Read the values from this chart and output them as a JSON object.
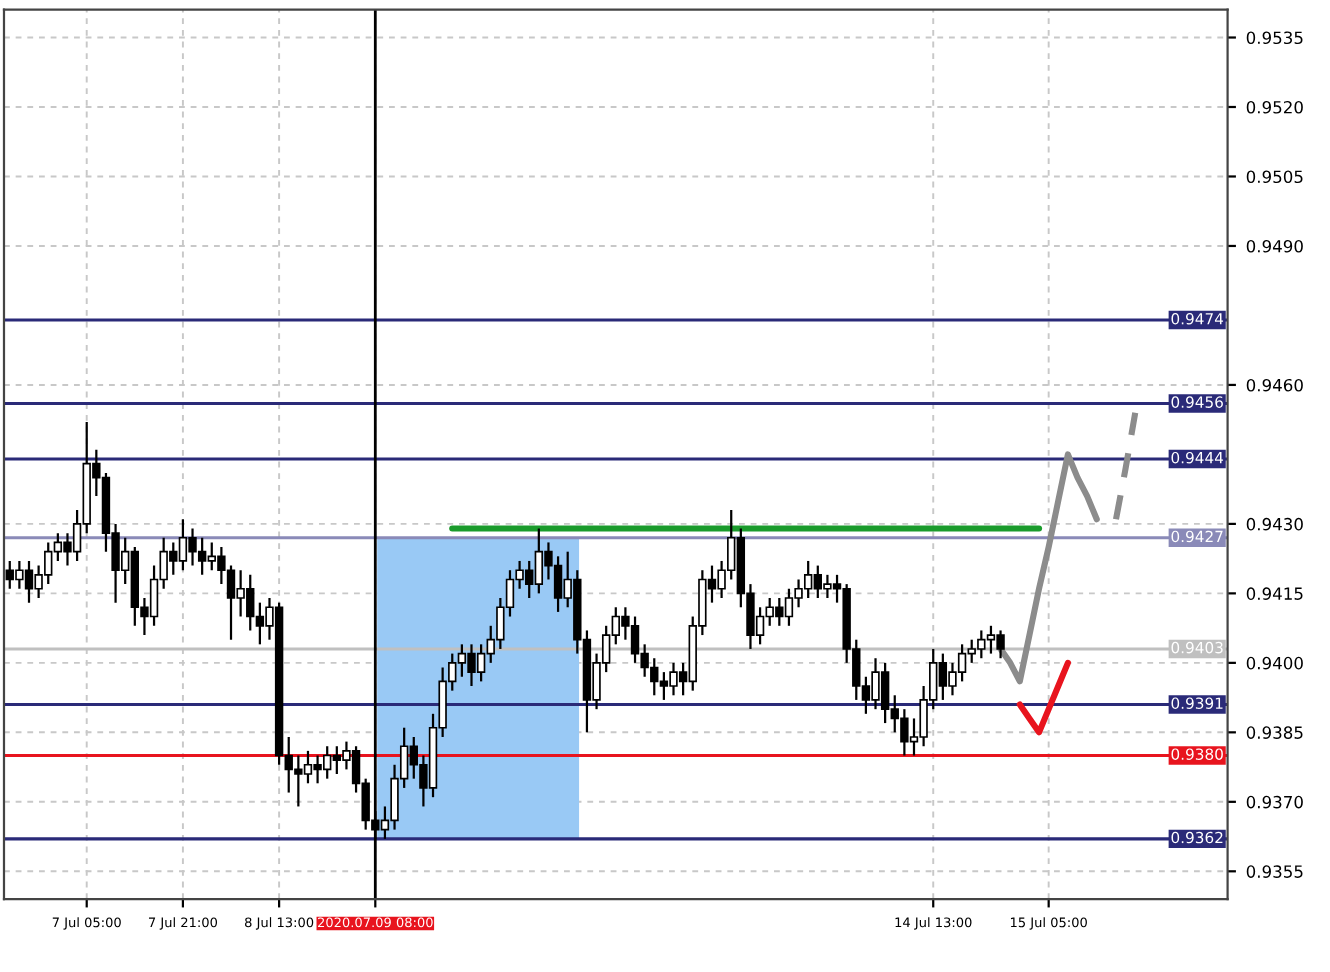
{
  "chart_data": {
    "type": "candlestick",
    "categories": [
      null,
      null,
      null,
      null,
      null,
      null,
      null,
      null,
      "7 Jul 05:00",
      null,
      null,
      null,
      null,
      null,
      null,
      null,
      null,
      null,
      "7 Jul 21:00",
      null,
      null,
      null,
      null,
      null,
      null,
      null,
      null,
      null,
      "8 Jul 13:00",
      null,
      null,
      null,
      null,
      null,
      null,
      null,
      null,
      null,
      "2020.07.09 08:00",
      null,
      null,
      null,
      null,
      null,
      null,
      null,
      null,
      null,
      null,
      null,
      null,
      null,
      null,
      null,
      null,
      null,
      null,
      null,
      null,
      null,
      null,
      null,
      null,
      null,
      null,
      null,
      null,
      null,
      null,
      null,
      null,
      null,
      null,
      null,
      null,
      null,
      null,
      null,
      null,
      null,
      null,
      null,
      null,
      null,
      null,
      null,
      null,
      null,
      null,
      null,
      null,
      null,
      null,
      null,
      null,
      null,
      "14 Jul 13:00",
      null,
      null,
      null,
      null,
      null,
      null,
      null,
      null,
      null,
      null,
      null,
      "15 Jul 05:00",
      null,
      null,
      null,
      null,
      null,
      null,
      null,
      null,
      null,
      null,
      null,
      null,
      null,
      null,
      null,
      null,
      null,
      null
    ],
    "ohlc": [
      [
        0.942,
        0.9422,
        0.9416,
        0.9418
      ],
      [
        0.9418,
        0.9422,
        0.9416,
        0.942
      ],
      [
        0.942,
        0.9422,
        0.9413,
        0.9416
      ],
      [
        0.9416,
        0.9421,
        0.9414,
        0.9419
      ],
      [
        0.9419,
        0.9426,
        0.9417,
        0.9424
      ],
      [
        0.9424,
        0.9428,
        0.9422,
        0.9426
      ],
      [
        0.9426,
        0.9428,
        0.9421,
        0.9424
      ],
      [
        0.9424,
        0.9433,
        0.9422,
        0.943
      ],
      [
        0.943,
        0.9452,
        0.9428,
        0.9443
      ],
      [
        0.9443,
        0.9446,
        0.9436,
        0.944
      ],
      [
        0.944,
        0.9441,
        0.9424,
        0.9428
      ],
      [
        0.9428,
        0.943,
        0.9413,
        0.942
      ],
      [
        0.942,
        0.9427,
        0.9417,
        0.9424
      ],
      [
        0.9424,
        0.9425,
        0.9408,
        0.9412
      ],
      [
        0.9412,
        0.9414,
        0.9406,
        0.941
      ],
      [
        0.941,
        0.9421,
        0.9408,
        0.9418
      ],
      [
        0.9418,
        0.9427,
        0.9416,
        0.9424
      ],
      [
        0.9424,
        0.9426,
        0.9419,
        0.9422
      ],
      [
        0.9422,
        0.9431,
        0.942,
        0.9427
      ],
      [
        0.9427,
        0.9429,
        0.9421,
        0.9424
      ],
      [
        0.9424,
        0.9427,
        0.9419,
        0.9422
      ],
      [
        0.9422,
        0.9426,
        0.942,
        0.9423
      ],
      [
        0.9423,
        0.9425,
        0.9417,
        0.942
      ],
      [
        0.942,
        0.9421,
        0.9405,
        0.9414
      ],
      [
        0.9414,
        0.942,
        0.941,
        0.9416
      ],
      [
        0.9416,
        0.9419,
        0.9407,
        0.941
      ],
      [
        0.941,
        0.9413,
        0.9404,
        0.9408
      ],
      [
        0.9408,
        0.9414,
        0.9405,
        0.9412
      ],
      [
        0.9412,
        0.9413,
        0.9378,
        0.938
      ],
      [
        0.938,
        0.9384,
        0.9372,
        0.9377
      ],
      [
        0.9377,
        0.938,
        0.9369,
        0.9376
      ],
      [
        0.9376,
        0.9381,
        0.9374,
        0.9378
      ],
      [
        0.9378,
        0.938,
        0.9374,
        0.9377
      ],
      [
        0.9377,
        0.9382,
        0.9375,
        0.938
      ],
      [
        0.938,
        0.9382,
        0.9376,
        0.9379
      ],
      [
        0.9379,
        0.9383,
        0.9377,
        0.9381
      ],
      [
        0.9381,
        0.9382,
        0.9372,
        0.9374
      ],
      [
        0.9374,
        0.9375,
        0.9364,
        0.9366
      ],
      [
        0.9366,
        0.9368,
        0.9362,
        0.9364
      ],
      [
        0.9364,
        0.9369,
        0.9362,
        0.9366
      ],
      [
        0.9366,
        0.9378,
        0.9364,
        0.9375
      ],
      [
        0.9375,
        0.9386,
        0.9373,
        0.9382
      ],
      [
        0.9382,
        0.9384,
        0.9375,
        0.9378
      ],
      [
        0.9378,
        0.938,
        0.9369,
        0.9373
      ],
      [
        0.9373,
        0.9389,
        0.9371,
        0.9386
      ],
      [
        0.9386,
        0.9399,
        0.9384,
        0.9396
      ],
      [
        0.9396,
        0.9402,
        0.9394,
        0.94
      ],
      [
        0.94,
        0.9404,
        0.9397,
        0.9402
      ],
      [
        0.9402,
        0.9404,
        0.9395,
        0.9398
      ],
      [
        0.9398,
        0.9404,
        0.9396,
        0.9402
      ],
      [
        0.9402,
        0.9408,
        0.94,
        0.9405
      ],
      [
        0.9405,
        0.9414,
        0.9403,
        0.9412
      ],
      [
        0.9412,
        0.942,
        0.941,
        0.9418
      ],
      [
        0.9418,
        0.9422,
        0.9416,
        0.942
      ],
      [
        0.942,
        0.9422,
        0.9414,
        0.9417
      ],
      [
        0.9417,
        0.9429,
        0.9415,
        0.9424
      ],
      [
        0.9424,
        0.9426,
        0.9418,
        0.9421
      ],
      [
        0.9421,
        0.9423,
        0.9411,
        0.9414
      ],
      [
        0.9414,
        0.9424,
        0.9412,
        0.9418
      ],
      [
        0.9418,
        0.942,
        0.9402,
        0.9405
      ],
      [
        0.9405,
        0.9407,
        0.9385,
        0.9392
      ],
      [
        0.9392,
        0.9402,
        0.939,
        0.94
      ],
      [
        0.94,
        0.9408,
        0.9398,
        0.9406
      ],
      [
        0.9406,
        0.9412,
        0.9404,
        0.941
      ],
      [
        0.941,
        0.9412,
        0.9405,
        0.9408
      ],
      [
        0.9408,
        0.941,
        0.94,
        0.9402
      ],
      [
        0.9402,
        0.9404,
        0.9397,
        0.9399
      ],
      [
        0.9399,
        0.9401,
        0.9393,
        0.9396
      ],
      [
        0.9396,
        0.9398,
        0.9392,
        0.9395
      ],
      [
        0.9395,
        0.94,
        0.9393,
        0.9398
      ],
      [
        0.9398,
        0.94,
        0.9393,
        0.9396
      ],
      [
        0.9396,
        0.941,
        0.9394,
        0.9408
      ],
      [
        0.9408,
        0.942,
        0.9406,
        0.9418
      ],
      [
        0.9418,
        0.9421,
        0.9413,
        0.9416
      ],
      [
        0.9416,
        0.9422,
        0.9414,
        0.942
      ],
      [
        0.942,
        0.9433,
        0.9418,
        0.9427
      ],
      [
        0.9427,
        0.9429,
        0.9412,
        0.9415
      ],
      [
        0.9415,
        0.9417,
        0.9403,
        0.9406
      ],
      [
        0.9406,
        0.9412,
        0.9404,
        0.941
      ],
      [
        0.941,
        0.9414,
        0.9408,
        0.9412
      ],
      [
        0.9412,
        0.9414,
        0.9408,
        0.941
      ],
      [
        0.941,
        0.9416,
        0.9408,
        0.9414
      ],
      [
        0.9414,
        0.9418,
        0.9412,
        0.9416
      ],
      [
        0.9416,
        0.9422,
        0.9414,
        0.9419
      ],
      [
        0.9419,
        0.9421,
        0.9414,
        0.9416
      ],
      [
        0.9416,
        0.9419,
        0.9414,
        0.9417
      ],
      [
        0.9417,
        0.9419,
        0.9413,
        0.9416
      ],
      [
        0.9416,
        0.9417,
        0.94,
        0.9403
      ],
      [
        0.9403,
        0.9405,
        0.9392,
        0.9395
      ],
      [
        0.9395,
        0.9397,
        0.9389,
        0.9392
      ],
      [
        0.9392,
        0.9401,
        0.939,
        0.9398
      ],
      [
        0.9398,
        0.94,
        0.9387,
        0.939
      ],
      [
        0.939,
        0.9393,
        0.9385,
        0.9388
      ],
      [
        0.9388,
        0.939,
        0.938,
        0.9383
      ],
      [
        0.9383,
        0.9388,
        0.938,
        0.9384
      ],
      [
        0.9384,
        0.9395,
        0.9382,
        0.9392
      ],
      [
        0.9392,
        0.9403,
        0.939,
        0.94
      ],
      [
        0.94,
        0.9402,
        0.9392,
        0.9395
      ],
      [
        0.9395,
        0.94,
        0.9393,
        0.9398
      ],
      [
        0.9398,
        0.9404,
        0.9396,
        0.9402
      ],
      [
        0.9402,
        0.9405,
        0.94,
        0.9403
      ],
      [
        0.9403,
        0.9407,
        0.9401,
        0.9405
      ],
      [
        0.9405,
        0.9408,
        0.9402,
        0.9406
      ],
      [
        0.9406,
        0.9407,
        0.9401,
        0.9403
      ],
      null,
      null,
      null,
      null,
      null,
      null,
      null,
      null,
      null,
      null,
      null,
      null,
      null,
      null,
      null,
      null,
      null,
      null,
      null,
      null,
      null,
      null,
      null
    ],
    "series": [
      {
        "type": "line",
        "color": "#1a9b2c",
        "line_style": "solid",
        "values": [
          null,
          null,
          null,
          null,
          null,
          null,
          null,
          null,
          null,
          null,
          null,
          null,
          null,
          null,
          null,
          null,
          null,
          null,
          null,
          null,
          null,
          null,
          null,
          null,
          null,
          null,
          null,
          null,
          null,
          null,
          null,
          null,
          null,
          null,
          null,
          null,
          null,
          null,
          null,
          null,
          null,
          null,
          null,
          null,
          null,
          null,
          0.9429,
          0.9429,
          0.9429,
          0.9429,
          0.9429,
          0.9429,
          0.9429,
          0.9429,
          0.9429,
          0.9429,
          0.9429,
          0.9429,
          0.9429,
          0.9429,
          0.9429,
          0.9429,
          0.9429,
          0.9429,
          0.9429,
          0.9429,
          0.9429,
          0.9429,
          0.9429,
          0.9429,
          0.9429,
          0.9429,
          0.9429,
          0.9429,
          0.9429,
          0.9429,
          0.9429,
          0.9429,
          0.9429,
          0.9429,
          0.9429,
          0.9429,
          0.9429,
          0.9429,
          0.9429,
          0.9429,
          0.9429,
          0.9429,
          0.9429,
          0.9429,
          0.9429,
          0.9429,
          0.9429,
          0.9429,
          0.9429,
          0.9429,
          0.9429,
          0.9429,
          0.9429,
          0.9429,
          0.9429,
          0.9429,
          0.9429,
          0.9429,
          0.9429,
          0.9429,
          0.9429,
          0.9429,
          null,
          null,
          null,
          null,
          null,
          null,
          null,
          null,
          null,
          null,
          null,
          null,
          null,
          null,
          null,
          null,
          null,
          null,
          null
        ]
      },
      {
        "type": "line",
        "color": "#8c8c8c",
        "line_style": "solid",
        "values": [
          null,
          null,
          null,
          null,
          null,
          null,
          null,
          null,
          null,
          null,
          null,
          null,
          null,
          null,
          null,
          null,
          null,
          null,
          null,
          null,
          null,
          null,
          null,
          null,
          null,
          null,
          null,
          null,
          null,
          null,
          null,
          null,
          null,
          null,
          null,
          null,
          null,
          null,
          null,
          null,
          null,
          null,
          null,
          null,
          null,
          null,
          null,
          null,
          null,
          null,
          null,
          null,
          null,
          null,
          null,
          null,
          null,
          null,
          null,
          null,
          null,
          null,
          null,
          null,
          null,
          null,
          null,
          null,
          null,
          null,
          null,
          null,
          null,
          null,
          null,
          null,
          null,
          null,
          null,
          null,
          null,
          null,
          null,
          null,
          null,
          null,
          null,
          null,
          null,
          null,
          null,
          null,
          null,
          null,
          null,
          null,
          null,
          null,
          null,
          null,
          null,
          null,
          null,
          0.9403,
          0.94,
          0.9396,
          0.9406,
          0.9416,
          0.9425,
          0.9435,
          0.9445,
          0.944,
          0.9436,
          0.9431,
          null,
          null,
          null,
          null,
          null,
          null,
          null,
          null,
          null,
          null,
          null,
          null,
          null
        ]
      },
      {
        "type": "line",
        "color": "#8c8c8c",
        "line_style": "dashed",
        "values": [
          null,
          null,
          null,
          null,
          null,
          null,
          null,
          null,
          null,
          null,
          null,
          null,
          null,
          null,
          null,
          null,
          null,
          null,
          null,
          null,
          null,
          null,
          null,
          null,
          null,
          null,
          null,
          null,
          null,
          null,
          null,
          null,
          null,
          null,
          null,
          null,
          null,
          null,
          null,
          null,
          null,
          null,
          null,
          null,
          null,
          null,
          null,
          null,
          null,
          null,
          null,
          null,
          null,
          null,
          null,
          null,
          null,
          null,
          null,
          null,
          null,
          null,
          null,
          null,
          null,
          null,
          null,
          null,
          null,
          null,
          null,
          null,
          null,
          null,
          null,
          null,
          null,
          null,
          null,
          null,
          null,
          null,
          null,
          null,
          null,
          null,
          null,
          null,
          null,
          null,
          null,
          null,
          null,
          null,
          null,
          null,
          null,
          null,
          null,
          null,
          null,
          null,
          null,
          null,
          null,
          null,
          null,
          null,
          null,
          null,
          null,
          null,
          null,
          null,
          null,
          0.9431,
          0.9442,
          0.9454,
          null,
          null,
          null,
          null,
          null,
          null,
          null,
          null,
          null
        ]
      },
      {
        "type": "line",
        "color": "#e8141e",
        "line_style": "solid",
        "values": [
          null,
          null,
          null,
          null,
          null,
          null,
          null,
          null,
          null,
          null,
          null,
          null,
          null,
          null,
          null,
          null,
          null,
          null,
          null,
          null,
          null,
          null,
          null,
          null,
          null,
          null,
          null,
          null,
          null,
          null,
          null,
          null,
          null,
          null,
          null,
          null,
          null,
          null,
          null,
          null,
          null,
          null,
          null,
          null,
          null,
          null,
          null,
          null,
          null,
          null,
          null,
          null,
          null,
          null,
          null,
          null,
          null,
          null,
          null,
          null,
          null,
          null,
          null,
          null,
          null,
          null,
          null,
          null,
          null,
          null,
          null,
          null,
          null,
          null,
          null,
          null,
          null,
          null,
          null,
          null,
          null,
          null,
          null,
          null,
          null,
          null,
          null,
          null,
          null,
          null,
          null,
          null,
          null,
          null,
          null,
          null,
          null,
          null,
          null,
          null,
          null,
          null,
          null,
          null,
          null,
          0.9391,
          0.9388,
          0.9385,
          0.939,
          0.9395,
          0.94,
          null,
          null,
          null,
          null,
          null,
          null,
          null,
          null,
          null,
          null,
          null,
          null,
          null,
          null,
          null,
          null
        ]
      }
    ],
    "color": "#000000",
    "ylim": [
      0.9349,
      0.9541
    ],
    "yticks": [
      0.9355,
      {
        "value": 0.937,
        "label": "0.9370"
      },
      0.9385,
      {
        "value": 0.94,
        "label": "0.9400"
      },
      0.9415,
      {
        "value": 0.943,
        "label": "0.9430"
      },
      {
        "value": 0.946,
        "label": "0.9460"
      },
      {
        "value": 0.949,
        "label": "0.9490"
      },
      0.9505,
      {
        "value": 0.952,
        "label": "0.9520"
      },
      0.9535
    ],
    "ref_lines": [
      {
        "axis": "y",
        "value": 0.9474,
        "label": "0.9474",
        "color": "#2a2a78"
      },
      {
        "axis": "y",
        "value": 0.9456,
        "label": "0.9456",
        "color": "#2a2a78"
      },
      {
        "axis": "y",
        "value": 0.9444,
        "label": "0.9444",
        "color": "#2a2a78"
      },
      {
        "axis": "y",
        "value": 0.9427,
        "label": "0.9427",
        "color": "#8a8ab8"
      },
      {
        "axis": "y",
        "value": 0.9403,
        "label": "0.9403",
        "color": "#c0c0c0"
      },
      {
        "axis": "y",
        "value": 0.9391,
        "label": "0.9391",
        "color": "#2a2a78"
      },
      {
        "axis": "y",
        "value": 0.938,
        "label": "0.9380",
        "color": "#e8141e"
      },
      {
        "axis": "y",
        "value": 0.9362,
        "label": "0.9362",
        "color": "#2a2a78"
      },
      {
        "axis": "x",
        "value": "2020.07.09 08:00",
        "color": "#000000"
      }
    ],
    "grid": true
  }
}
